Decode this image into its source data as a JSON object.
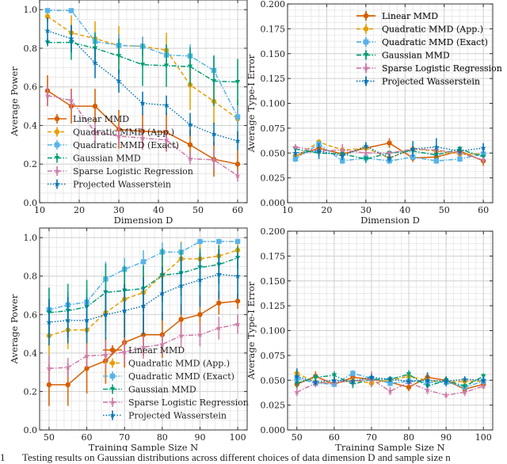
{
  "figure": {
    "caption_label": "1",
    "caption_text": "Testing results on Gaussian distributions across different choices of data dimension D and sample size n"
  },
  "series_styles": [
    {
      "name": "Linear MMD",
      "color": "#d55e00",
      "dash": "solid",
      "marker": "circle"
    },
    {
      "name": "Quadratic MMD (App.)",
      "color": "#e69f00",
      "dash": "dashed",
      "marker": "circle"
    },
    {
      "name": "Quadratic MMD (Exact)",
      "color": "#56b4e9",
      "dash": "dashdot",
      "marker": "square"
    },
    {
      "name": "Gaussian MMD",
      "color": "#009e73",
      "dash": "dashdot",
      "marker": "triangle-down"
    },
    {
      "name": "Sparse Logistic Regression",
      "color": "#cc79a7",
      "dash": "dashdot",
      "marker": "star"
    },
    {
      "name": "Projected Wasserstein",
      "color": "#0072b2",
      "dash": "dotted",
      "marker": "star"
    }
  ],
  "chart_data": [
    {
      "type": "line",
      "panel": "top-left",
      "title": "",
      "xlabel": "Dimension D",
      "ylabel": "Average Power",
      "xlim": [
        10,
        62.4
      ],
      "ylim": [
        0,
        1.05
      ],
      "xticks": [
        10,
        20,
        30,
        40,
        50,
        60
      ],
      "yticks": [
        0.0,
        0.2,
        0.4,
        0.6,
        0.8,
        1.0
      ],
      "ytick_labels": [
        "0.0",
        "0.2",
        "0.4",
        "0.6",
        "0.8",
        "1.0"
      ],
      "grid": true,
      "legend": "lower-left",
      "x": [
        12,
        18,
        24,
        30,
        36,
        42,
        48,
        54,
        60
      ],
      "series": [
        {
          "name": "Linear MMD",
          "values": [
            0.58,
            0.5,
            0.5,
            0.38,
            0.37,
            0.365,
            0.3,
            0.225,
            0.2
          ],
          "err": [
            0.08,
            0.09,
            0.09,
            0.1,
            0.09,
            0.1,
            0.08,
            0.09,
            0.07
          ]
        },
        {
          "name": "Quadratic MMD (App.)",
          "values": [
            0.965,
            0.88,
            0.85,
            0.815,
            0.81,
            0.79,
            0.61,
            0.525,
            0.435
          ],
          "err": [
            0.03,
            0.09,
            0.09,
            0.1,
            0.05,
            0.09,
            0.13,
            0.12,
            0.1
          ]
        },
        {
          "name": "Quadratic MMD (Exact)",
          "values": [
            0.995,
            0.995,
            0.835,
            0.815,
            0.81,
            0.765,
            0.76,
            0.685,
            0.445
          ],
          "err": [
            0.005,
            0.005,
            0.05,
            0.06,
            0.05,
            0.05,
            0.06,
            0.08,
            0.08
          ]
        },
        {
          "name": "Gaussian MMD",
          "values": [
            0.83,
            0.83,
            0.8,
            0.76,
            0.715,
            0.71,
            0.705,
            0.63,
            0.625
          ],
          "err": [
            0.02,
            0.09,
            0.08,
            0.09,
            0.11,
            0.11,
            0.1,
            0.13,
            0.12
          ]
        },
        {
          "name": "Sparse Logistic Regression",
          "values": [
            0.555,
            0.53,
            0.365,
            0.345,
            0.335,
            0.325,
            0.228,
            0.222,
            0.14
          ],
          "err": [
            0.05,
            0.05,
            0.05,
            0.05,
            0.06,
            0.06,
            0.03,
            0.05,
            0.03
          ]
        },
        {
          "name": "Projected Wasserstein",
          "values": [
            0.89,
            0.85,
            0.725,
            0.63,
            0.515,
            0.505,
            0.405,
            0.355,
            0.32
          ],
          "err": [
            0.07,
            0.07,
            0.08,
            0.06,
            0.06,
            0.05,
            0.06,
            0.06,
            0.05
          ]
        }
      ]
    },
    {
      "type": "line",
      "panel": "top-right",
      "title": "",
      "xlabel": "Dimension D",
      "ylabel": "Average Type-I Error",
      "xlim": [
        10,
        62.4
      ],
      "ylim": [
        0,
        0.2
      ],
      "xticks": [
        10,
        20,
        30,
        40,
        50,
        60
      ],
      "yticks": [
        0.0,
        0.025,
        0.05,
        0.075,
        0.1,
        0.125,
        0.15,
        0.175,
        0.2
      ],
      "ytick_labels": [
        "0.000",
        "0.025",
        "0.050",
        "0.075",
        "0.100",
        "0.125",
        "0.150",
        "0.175",
        "0.200"
      ],
      "grid": true,
      "legend": "top-right",
      "x": [
        12,
        18,
        24,
        30,
        36,
        42,
        48,
        54,
        60
      ],
      "series": [
        {
          "name": "Linear MMD",
          "values": [
            0.047,
            0.055,
            0.049,
            0.055,
            0.06,
            0.045,
            0.046,
            0.052,
            0.042
          ],
          "err": [
            0.004,
            0.004,
            0.004,
            0.004,
            0.005,
            0.004,
            0.004,
            0.004,
            0.005
          ]
        },
        {
          "name": "Quadratic MMD (App.)",
          "values": [
            0.046,
            0.061,
            0.053,
            0.055,
            0.045,
            0.054,
            0.052,
            0.049,
            0.049
          ],
          "err": [
            0.003,
            0.003,
            0.003,
            0.003,
            0.003,
            0.003,
            0.003,
            0.003,
            0.003
          ]
        },
        {
          "name": "Quadratic MMD (Exact)",
          "values": [
            0.044,
            0.059,
            0.042,
            0.045,
            0.042,
            0.046,
            0.042,
            0.044,
            0.049
          ],
          "err": [
            0.003,
            0.003,
            0.003,
            0.003,
            0.003,
            0.003,
            0.003,
            0.003,
            0.003
          ]
        },
        {
          "name": "Gaussian MMD",
          "values": [
            0.054,
            0.05,
            0.049,
            0.044,
            0.05,
            0.052,
            0.048,
            0.054,
            0.046
          ],
          "err": [
            0.003,
            0.003,
            0.003,
            0.004,
            0.003,
            0.003,
            0.003,
            0.003,
            0.003
          ]
        },
        {
          "name": "Sparse Logistic Regression",
          "values": [
            0.056,
            0.052,
            0.053,
            0.05,
            0.05,
            0.054,
            0.053,
            0.05,
            0.043
          ],
          "err": [
            0.003,
            0.003,
            0.006,
            0.003,
            0.003,
            0.003,
            0.003,
            0.003,
            0.003
          ]
        },
        {
          "name": "Projected Wasserstein",
          "values": [
            0.05,
            0.052,
            0.047,
            0.057,
            0.045,
            0.054,
            0.056,
            0.052,
            0.055
          ],
          "err": [
            0.004,
            0.008,
            0.004,
            0.004,
            0.004,
            0.008,
            0.009,
            0.004,
            0.005
          ]
        }
      ]
    },
    {
      "type": "line",
      "panel": "bottom-left",
      "title": "",
      "xlabel": "Training Sample Size N",
      "ylabel": "Average Power",
      "xlim": [
        47.5,
        102.5
      ],
      "ylim": [
        0,
        1.05
      ],
      "xticks": [
        50,
        60,
        70,
        80,
        90,
        100
      ],
      "yticks": [
        0.0,
        0.2,
        0.4,
        0.6,
        0.8,
        1.0
      ],
      "ytick_labels": [
        "0.0",
        "0.2",
        "0.4",
        "0.6",
        "0.8",
        "1.0"
      ],
      "grid": true,
      "legend": "lower-right",
      "x": [
        50,
        55,
        60,
        65,
        70,
        75,
        80,
        85,
        90,
        95,
        100
      ],
      "series": [
        {
          "name": "Linear MMD",
          "values": [
            0.235,
            0.235,
            0.32,
            0.36,
            0.455,
            0.495,
            0.495,
            0.575,
            0.6,
            0.66,
            0.67
          ],
          "err": [
            0.11,
            0.11,
            0.13,
            0.12,
            0.13,
            0.11,
            0.12,
            0.08,
            0.1,
            0.06,
            0.04
          ]
        },
        {
          "name": "Quadratic MMD (App.)",
          "values": [
            0.49,
            0.52,
            0.52,
            0.61,
            0.68,
            0.715,
            0.805,
            0.89,
            0.89,
            0.905,
            0.935
          ],
          "err": [
            0.1,
            0.1,
            0.1,
            0.1,
            0.1,
            0.1,
            0.1,
            0.09,
            0.08,
            0.06,
            0.04
          ]
        },
        {
          "name": "Quadratic MMD (Exact)",
          "values": [
            0.625,
            0.65,
            0.665,
            0.785,
            0.835,
            0.875,
            0.925,
            0.925,
            0.98,
            0.98,
            0.98
          ],
          "err": [
            0.06,
            0.07,
            0.07,
            0.09,
            0.06,
            0.06,
            0.05,
            0.05,
            0.01,
            0.01,
            0.01
          ]
        },
        {
          "name": "Gaussian MMD",
          "values": [
            0.61,
            0.62,
            0.64,
            0.715,
            0.725,
            0.735,
            0.805,
            0.815,
            0.845,
            0.86,
            0.895
          ],
          "err": [
            0.13,
            0.14,
            0.14,
            0.15,
            0.13,
            0.12,
            0.14,
            0.12,
            0.1,
            0.1,
            0.06
          ]
        },
        {
          "name": "Sparse Logistic Regression",
          "values": [
            0.32,
            0.325,
            0.385,
            0.39,
            0.405,
            0.43,
            0.445,
            0.49,
            0.495,
            0.53,
            0.55
          ],
          "err": [
            0.07,
            0.05,
            0.06,
            0.07,
            0.06,
            0.06,
            0.05,
            0.06,
            0.06,
            0.06,
            0.05
          ]
        },
        {
          "name": "Projected Wasserstein",
          "values": [
            0.56,
            0.57,
            0.57,
            0.6,
            0.62,
            0.645,
            0.71,
            0.75,
            0.78,
            0.81,
            0.8
          ],
          "err": [
            0.12,
            0.12,
            0.12,
            0.13,
            0.14,
            0.15,
            0.14,
            0.15,
            0.14,
            0.13,
            0.12
          ]
        }
      ]
    },
    {
      "type": "line",
      "panel": "bottom-right",
      "title": "",
      "xlabel": "Training Sample Size N",
      "ylabel": "Average Type-I Error",
      "xlim": [
        47.5,
        102.5
      ],
      "ylim": [
        0,
        0.2
      ],
      "xticks": [
        50,
        60,
        70,
        80,
        90,
        100
      ],
      "yticks": [
        0.0,
        0.025,
        0.05,
        0.075,
        0.1,
        0.125,
        0.15,
        0.175,
        0.2
      ],
      "ytick_labels": [
        "0.000",
        "0.025",
        "0.050",
        "0.075",
        "0.100",
        "0.125",
        "0.150",
        "0.175",
        "0.200"
      ],
      "grid": true,
      "legend": "top-right",
      "x": [
        50,
        55,
        60,
        65,
        70,
        75,
        80,
        85,
        90,
        95,
        100
      ],
      "series": [
        {
          "name": "Linear MMD",
          "values": [
            0.046,
            0.054,
            0.046,
            0.053,
            0.051,
            0.048,
            0.043,
            0.053,
            0.05,
            0.041,
            0.046
          ],
          "err": [
            0.004,
            0.005,
            0.003,
            0.004,
            0.003,
            0.003,
            0.004,
            0.004,
            0.003,
            0.003,
            0.003
          ]
        },
        {
          "name": "Quadratic MMD (App.)",
          "values": [
            0.057,
            0.048,
            0.047,
            0.05,
            0.047,
            0.05,
            0.054,
            0.05,
            0.048,
            0.049,
            0.049
          ],
          "err": [
            0.003,
            0.003,
            0.003,
            0.003,
            0.003,
            0.003,
            0.003,
            0.003,
            0.003,
            0.003,
            0.003
          ]
        },
        {
          "name": "Quadratic MMD (Exact)",
          "values": [
            0.052,
            0.047,
            0.046,
            0.057,
            0.052,
            0.047,
            0.049,
            0.048,
            0.048,
            0.043,
            0.049
          ],
          "err": [
            0.003,
            0.003,
            0.003,
            0.003,
            0.003,
            0.003,
            0.003,
            0.003,
            0.003,
            0.003,
            0.003
          ]
        },
        {
          "name": "Gaussian MMD",
          "values": [
            0.047,
            0.053,
            0.055,
            0.046,
            0.051,
            0.051,
            0.056,
            0.044,
            0.05,
            0.044,
            0.054
          ],
          "err": [
            0.004,
            0.003,
            0.004,
            0.004,
            0.003,
            0.003,
            0.004,
            0.003,
            0.003,
            0.003,
            0.003
          ]
        },
        {
          "name": "Sparse Logistic Regression",
          "values": [
            0.038,
            0.047,
            0.048,
            0.049,
            0.051,
            0.039,
            0.048,
            0.04,
            0.035,
            0.038,
            0.044
          ],
          "err": [
            0.004,
            0.004,
            0.003,
            0.004,
            0.008,
            0.004,
            0.003,
            0.004,
            0.003,
            0.004,
            0.003
          ]
        },
        {
          "name": "Projected Wasserstein",
          "values": [
            0.054,
            0.048,
            0.05,
            0.049,
            0.053,
            0.051,
            0.049,
            0.05,
            0.049,
            0.051,
            0.05
          ],
          "err": [
            0.008,
            0.003,
            0.003,
            0.003,
            0.003,
            0.003,
            0.003,
            0.008,
            0.005,
            0.003,
            0.003
          ]
        }
      ]
    }
  ]
}
